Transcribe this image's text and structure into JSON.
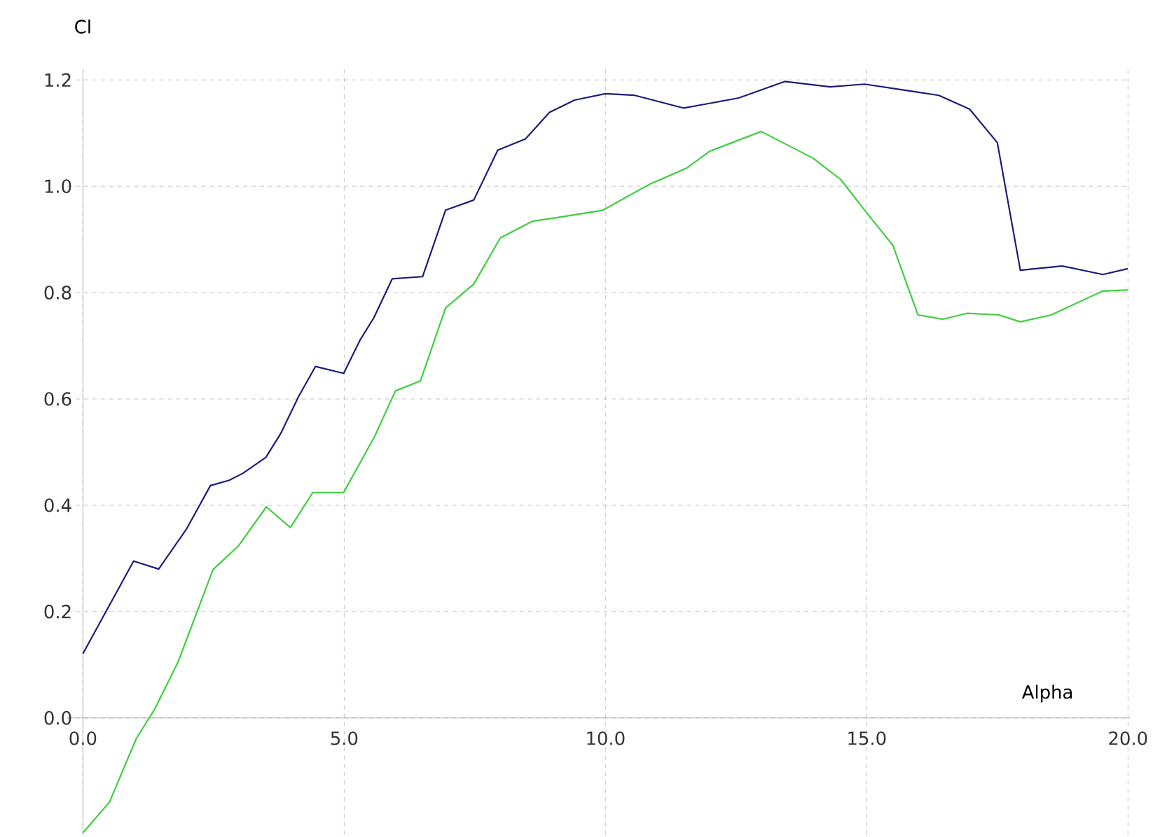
{
  "chart_data": {
    "type": "line",
    "xlabel": "Alpha",
    "ylabel": "Cl",
    "xlim": [
      -0.3,
      20.05
    ],
    "ylim": [
      -0.22,
      1.22
    ],
    "xticks": [
      {
        "value": 0,
        "label": "0.0"
      },
      {
        "value": 5,
        "label": "5.0"
      },
      {
        "value": 10,
        "label": "10.0"
      },
      {
        "value": 15,
        "label": "15.0"
      },
      {
        "value": 20,
        "label": "20.0"
      }
    ],
    "yticks": [
      {
        "value": 0,
        "label": "0.0"
      },
      {
        "value": 0.2,
        "label": "0.2"
      },
      {
        "value": 0.4,
        "label": "0.4"
      },
      {
        "value": 0.6,
        "label": "0.6"
      },
      {
        "value": 0.8,
        "label": "0.8"
      },
      {
        "value": 1.0,
        "label": "1.0"
      },
      {
        "value": 1.2,
        "label": "1.2"
      }
    ],
    "grid": true,
    "marker": "none",
    "line_style": "solid",
    "series": [
      {
        "color": "#1c1c7a",
        "x": [
          0,
          0.97,
          1.45,
          1.98,
          2.44,
          2.8,
          3.06,
          3.5,
          3.78,
          4.13,
          4.45,
          4.99,
          5.3,
          5.57,
          5.92,
          6.5,
          6.94,
          7.48,
          7.94,
          8.47,
          8.93,
          9.41,
          10.0,
          10.56,
          11.5,
          12.55,
          13.43,
          14.3,
          14.96,
          15.84,
          16.38,
          16.97,
          17.5,
          17.94,
          18.74,
          19.52,
          20.0
        ],
        "values": [
          0.121,
          0.295,
          0.28,
          0.355,
          0.437,
          0.447,
          0.46,
          0.49,
          0.534,
          0.605,
          0.661,
          0.648,
          0.71,
          0.753,
          0.826,
          0.83,
          0.955,
          0.974,
          1.068,
          1.089,
          1.139,
          1.162,
          1.174,
          1.171,
          1.147,
          1.166,
          1.197,
          1.187,
          1.192,
          1.179,
          1.171,
          1.145,
          1.082,
          0.842,
          0.85,
          0.834,
          0.845
        ]
      },
      {
        "color": "#3ecf3e",
        "x": [
          0,
          0.51,
          1.02,
          1.37,
          1.82,
          2.49,
          2.98,
          3.51,
          3.97,
          4.4,
          4.99,
          5.58,
          5.98,
          6.46,
          6.94,
          7.48,
          7.99,
          8.6,
          9.14,
          9.95,
          10.83,
          11.55,
          12.0,
          12.98,
          13.97,
          14.5,
          14.96,
          15.5,
          15.98,
          16.46,
          16.92,
          17.53,
          17.94,
          18.53,
          19.52,
          20.0
        ],
        "values": [
          -0.216,
          -0.158,
          -0.039,
          0.016,
          0.105,
          0.279,
          0.324,
          0.397,
          0.358,
          0.424,
          0.424,
          0.529,
          0.615,
          0.634,
          0.771,
          0.816,
          0.903,
          0.934,
          0.942,
          0.955,
          1.003,
          1.034,
          1.066,
          1.103,
          1.053,
          1.013,
          0.955,
          0.889,
          0.758,
          0.75,
          0.761,
          0.758,
          0.745,
          0.758,
          0.803,
          0.805
        ]
      }
    ]
  }
}
